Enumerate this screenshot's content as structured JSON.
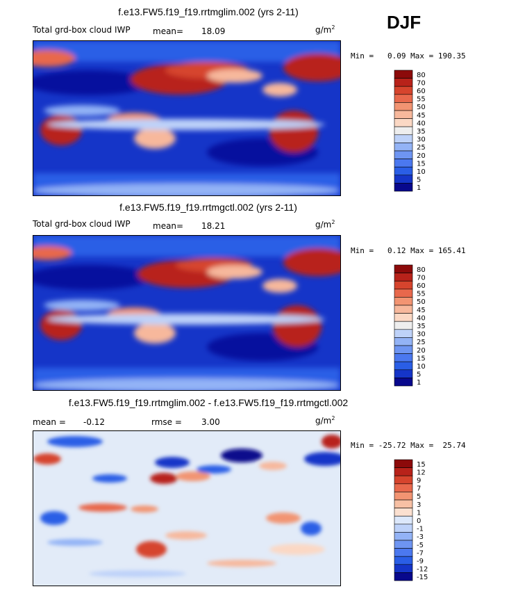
{
  "season": "DJF",
  "colors": {
    "positive_scale": [
      "#08088c",
      "#1535c8",
      "#2a5ee6",
      "#4b78ef",
      "#6e95f2",
      "#93b3f6",
      "#bed2f9",
      "#eeeeee",
      "#fbd8c4",
      "#f7b89c",
      "#f29472",
      "#e8684c",
      "#d6442d",
      "#b8221a",
      "#8c0a0a"
    ],
    "diff_scale": [
      "#08088c",
      "#1535c8",
      "#2a5ee6",
      "#4b78ef",
      "#6e95f2",
      "#93b3f6",
      "#bed2f9",
      "#dce8fb",
      "#fbe0d0",
      "#f7c0a4",
      "#f29472",
      "#e8684c",
      "#d6442d",
      "#b8221a",
      "#8c0a0a"
    ]
  },
  "panels": [
    {
      "title": "f.e13.FW5.f19_f19.rrtmglim.002 (yrs 2-11)",
      "label": "Total grd-box cloud IWP",
      "mean_label": "mean=",
      "mean_value": "18.09",
      "units_base": "g/m",
      "units_exp": "2",
      "minmax": "Min =   0.09 Max = 190.35"
    },
    {
      "title": "f.e13.FW5.f19_f19.rrtmgctl.002 (yrs 2-11)",
      "label": "Total grd-box cloud IWP",
      "mean_label": "mean=",
      "mean_value": "18.21",
      "units_base": "g/m",
      "units_exp": "2",
      "minmax": "Min =   0.12 Max = 165.41"
    },
    {
      "title": "f.e13.FW5.f19_f19.rrtmglim.002 - f.e13.FW5.f19_f19.rrtmgctl.002",
      "mean_label": "mean =",
      "mean_value": "-0.12",
      "rmse_label": "rmse =",
      "rmse_value": "3.00",
      "units_base": "g/m",
      "units_exp": "2",
      "minmax": "Min = -25.72 Max =  25.74"
    }
  ],
  "chart_data": [
    {
      "type": "heatmap",
      "title": "f.e13.FW5.f19_f19.rrtmglim.002 (yrs 2-11)",
      "variable": "Total grd-box cloud IWP",
      "units": "g/m2",
      "mean": 18.09,
      "min": 0.09,
      "max": 190.35,
      "contour_levels": [
        1,
        5,
        10,
        15,
        20,
        25,
        30,
        35,
        40,
        45,
        50,
        55,
        60,
        70,
        80
      ]
    },
    {
      "type": "heatmap",
      "title": "f.e13.FW5.f19_f19.rrtmgctl.002 (yrs 2-11)",
      "variable": "Total grd-box cloud IWP",
      "units": "g/m2",
      "mean": 18.21,
      "min": 0.12,
      "max": 165.41,
      "contour_levels": [
        1,
        5,
        10,
        15,
        20,
        25,
        30,
        35,
        40,
        45,
        50,
        55,
        60,
        70,
        80
      ]
    },
    {
      "type": "heatmap",
      "title": "f.e13.FW5.f19_f19.rrtmglim.002 - f.e13.FW5.f19_f19.rrtmgctl.002",
      "units": "g/m2",
      "mean": -0.12,
      "rmse": 3.0,
      "min": -25.72,
      "max": 25.74,
      "contour_levels": [
        -15,
        -12,
        -9,
        -7,
        -5,
        -3,
        -1,
        0,
        1,
        3,
        5,
        7,
        9,
        12,
        15
      ]
    }
  ],
  "colorbars": [
    {
      "labels": [
        "80",
        "70",
        "60",
        "55",
        "50",
        "45",
        "40",
        "35",
        "30",
        "25",
        "20",
        "15",
        "10",
        "5",
        "1"
      ]
    },
    {
      "labels": [
        "80",
        "70",
        "60",
        "55",
        "50",
        "45",
        "40",
        "35",
        "30",
        "25",
        "20",
        "15",
        "10",
        "5",
        "1"
      ]
    },
    {
      "labels": [
        "15",
        "12",
        "9",
        "7",
        "5",
        "3",
        "1",
        "0",
        "-1",
        "-3",
        "-5",
        "-7",
        "-9",
        "-12",
        "-15"
      ]
    }
  ]
}
